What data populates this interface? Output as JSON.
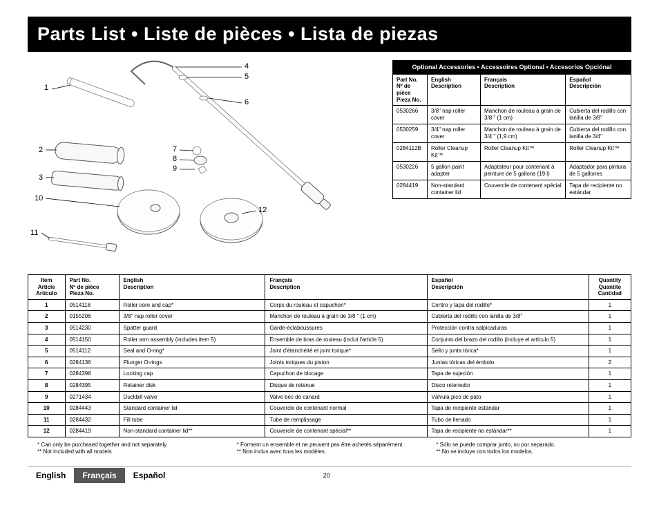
{
  "title": "Parts List • Liste de pièces • Lista de piezas",
  "accessories": {
    "bar": "Optional Accessories • Accessoires Optional • Accesorios Opciónal",
    "headers": {
      "partno": "Part No.\nNº de pièce\nPieza No.",
      "en": "English\nDescription",
      "fr": "Français\nDescription",
      "es": "Español\nDescripción"
    },
    "rows": [
      {
        "partno": "0530266",
        "en": "3/8\" nap roller cover",
        "fr": "Manchon de rouleau à grain de 3/8 \" (1 cm)",
        "es": "Cubierta del rodillo con lanilla de 3/8\""
      },
      {
        "partno": "0530259",
        "en": "3/4\" nap roller cover",
        "fr": "Manchon de rouleau à grain de 3/4 \" (1,9 cm)",
        "es": "Cubierta del rodillo con lanilla de 3/4\""
      },
      {
        "partno": "0284112B",
        "en": "Roller Cleanup Kit™",
        "fr": "Roller Cleanup Kit™",
        "es": "Roller Cleanup Kit™"
      },
      {
        "partno": "0530226",
        "en": "5 gallon paint adapter",
        "fr": "Adaptateur pour contenant à peinture de 5 gallons (19 l)",
        "es": "Adaptador para pintura de 5 gallones"
      },
      {
        "partno": "0284419",
        "en": "Non-standard container lid",
        "fr": "Couvercle de contenant spécial",
        "es": "Tapa de recipiente no estándar"
      }
    ]
  },
  "parts": {
    "headers": {
      "item": "Item\nArticle\nArtículo",
      "partno": "Part No.\nNº de pièce\nPieza No.",
      "en": "English\nDescription",
      "fr": "Français\nDescription",
      "es": "Español\nDescripción",
      "qty": "Quantity\nQuantite\nCantidad"
    },
    "rows": [
      {
        "item": "1",
        "partno": "0514118",
        "en": "Roller core and cap*",
        "fr": "Corps du rouleau et capuchon*",
        "es": "Centro y tapa del rodillo*",
        "qty": "1"
      },
      {
        "item": "2",
        "partno": "0155206",
        "en": "3/8\" nap roller cover",
        "fr": "Manchon de rouleau à grain de 3/8 \" (1 cm)",
        "es": "Cubierta del rodillo con lanilla de 3/8\"",
        "qty": "1"
      },
      {
        "item": "3",
        "partno": "0514230",
        "en": "Spatter guard",
        "fr": "Garde-éclaboussures",
        "es": "Protección contra salpicaduras",
        "qty": "1"
      },
      {
        "item": "4",
        "partno": "0514150",
        "en": "Roller arm assembly (includes item 5)",
        "fr": "Ensemble de bras de rouleau (inclut l'article 5)",
        "es": "Conjunto del brazo del rodillo (incluye el artículo 5)",
        "qty": "1"
      },
      {
        "item": "5",
        "partno": "0514112",
        "en": "Seal and O-ring*",
        "fr": "Joint d'étanchéité et joint torique*",
        "es": "Sello y junta tórica*",
        "qty": "1"
      },
      {
        "item": "6",
        "partno": "0284136",
        "en": "Plunger O-rings",
        "fr": "Joints toriques du piston",
        "es": "Juntas tóricas del émbolo",
        "qty": "2"
      },
      {
        "item": "7",
        "partno": "0284398",
        "en": "Locking cap",
        "fr": "Capuchon de blocage",
        "es": "Tapa de sujeción",
        "qty": "1"
      },
      {
        "item": "8",
        "partno": "0284395",
        "en": "Retainer disk",
        "fr": "Disque de retenue",
        "es": "Disco retenedor",
        "qty": "1"
      },
      {
        "item": "9",
        "partno": "0271434",
        "en": "Duckbill valve",
        "fr": "Valve bec de canard",
        "es": "Válvula pico de pato",
        "qty": "1"
      },
      {
        "item": "10",
        "partno": "0284443",
        "en": "Standard container lid",
        "fr": "Couvercle de contenant normal",
        "es": "Tapa de recipiente estándar",
        "qty": "1"
      },
      {
        "item": "11",
        "partno": "0284432",
        "en": "Fill tube",
        "fr": "Tube de remplissage",
        "es": "Tubo de llenado",
        "qty": "1"
      },
      {
        "item": "12",
        "partno": "0284419",
        "en": "Non-standard container lid**",
        "fr": "Couvercle de contenant spécial**",
        "es": "Tapa de recipiente no estándar**",
        "qty": "1"
      }
    ]
  },
  "footnotes": {
    "en1": "* Can only be purchased together and not separately.",
    "en2": "** Not included with all models",
    "fr1": "* Forment un ensemble et ne peuvent pas être achetés séparément.",
    "fr2": "** Non inclus avec tous les modèles.",
    "es1": "* Sólo se puede comprar junto, no por separado.",
    "es2": "** No se incluye con todos los modelos."
  },
  "callouts": {
    "c1": "1",
    "c2": "2",
    "c3": "3",
    "c4": "4",
    "c5": "5",
    "c6": "6",
    "c7": "7",
    "c8": "8",
    "c9": "9",
    "c10": "10",
    "c11": "11",
    "c12": "12"
  },
  "footer": {
    "en": "English",
    "fr": "Français",
    "es": "Español",
    "page": "20"
  }
}
